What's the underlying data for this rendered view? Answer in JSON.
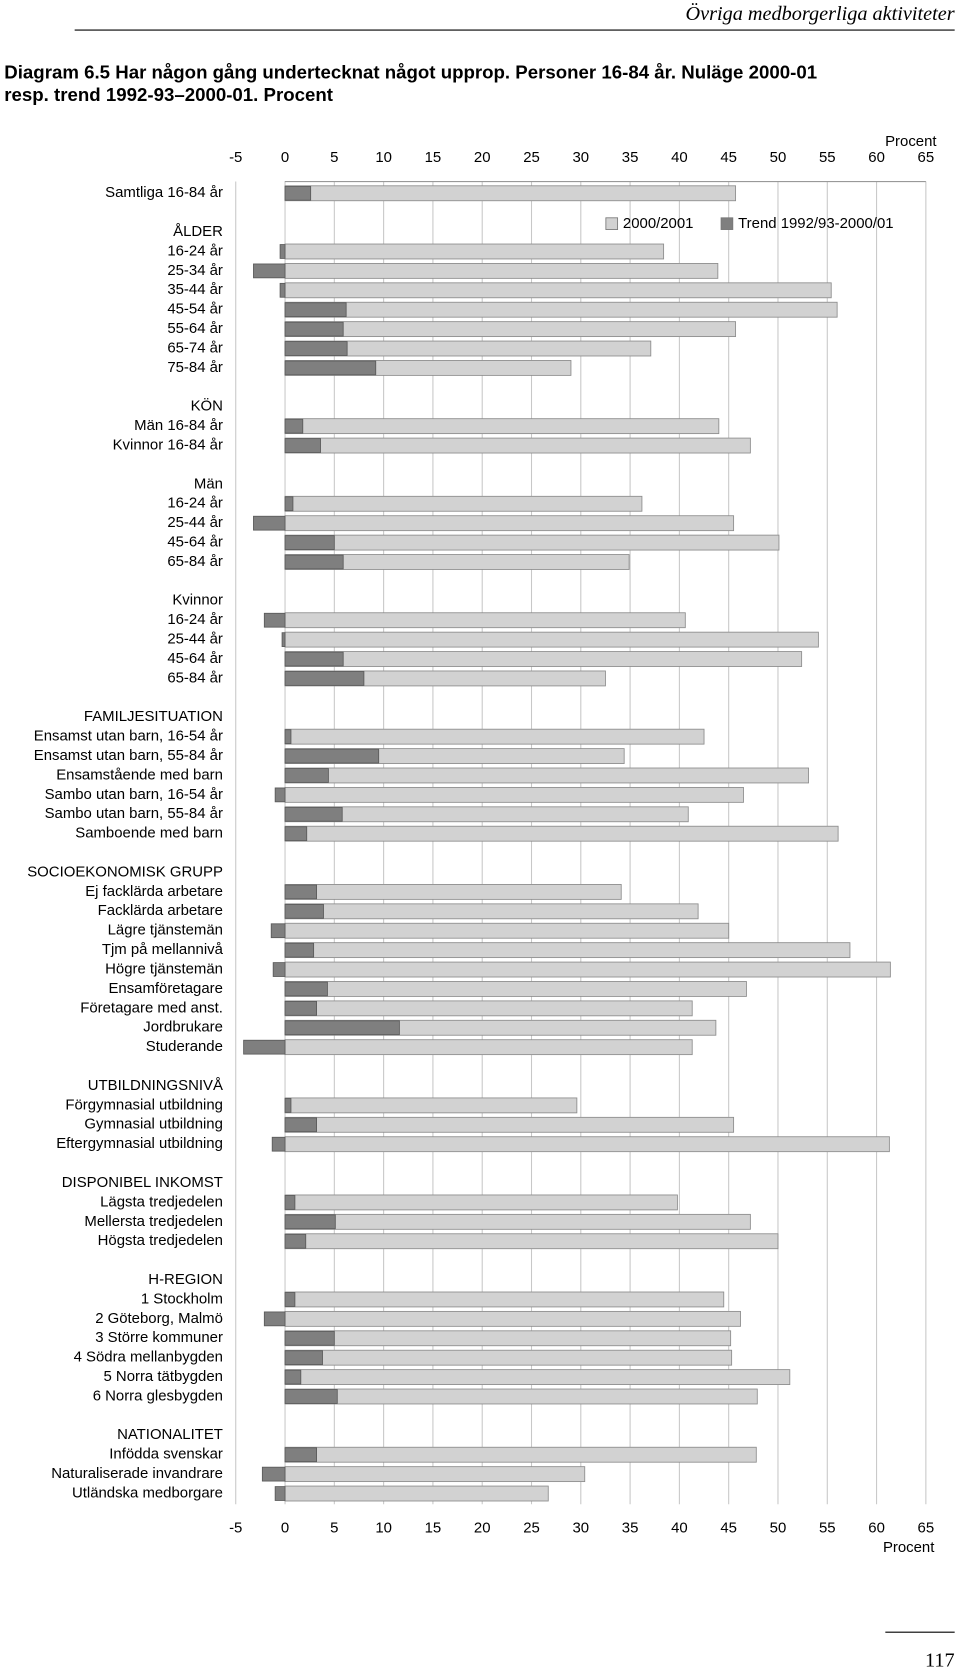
{
  "header": {
    "running_title": "Övriga medborgerliga aktiviteter"
  },
  "chart_data": {
    "type": "bar",
    "orientation": "horizontal",
    "title": [
      "Diagram 6.5 Har någon gång undertecknat något upprop. Personer 16-84 år. Nuläge 2000-01",
      "resp. trend 1992-93–2000-01. Procent"
    ],
    "x_label": "Procent",
    "xlim": [
      -5,
      65
    ],
    "xticks": [
      -5,
      0,
      5,
      10,
      15,
      20,
      25,
      30,
      35,
      40,
      45,
      50,
      55,
      60,
      65
    ],
    "grid": true,
    "legend": "top-right",
    "categories": [
      "Samtliga 16-84 år",
      null,
      "ÅLDER",
      "16-24 år",
      "25-34 år",
      "35-44 år",
      "45-54 år",
      "55-64 år",
      "65-74 år",
      "75-84 år",
      null,
      "KÖN",
      "Män 16-84 år",
      "Kvinnor 16-84 år",
      null,
      "Män",
      "16-24 år",
      "25-44 år",
      "45-64 år",
      "65-84 år",
      null,
      "Kvinnor",
      "16-24 år",
      "25-44 år",
      "45-64 år",
      "65-84 år",
      null,
      "FAMILJESITUATION",
      "Ensamst utan barn, 16-54 år",
      "Ensamst utan barn, 55-84 år",
      "Ensamstående med barn",
      "Sambo utan barn, 16-54 år",
      "Sambo utan barn, 55-84 år",
      "Samboende med barn",
      null,
      "SOCIOEKONOMISK GRUPP",
      "Ej facklärda arbetare",
      "Facklärda arbetare",
      "Lägre tjänstemän",
      "Tjm på mellannivå",
      "Högre tjänstemän",
      "Ensamföretagare",
      "Företagare med anst.",
      "Jordbrukare",
      "Studerande",
      null,
      "UTBILDNINGSNIVÅ",
      "Förgymnasial utbildning",
      "Gymnasial utbildning",
      "Eftergymnasial utbildning",
      null,
      "DISPONIBEL INKOMST",
      "Lägsta tredjedelen",
      "Mellersta tredjedelen",
      "Högsta tredjedelen",
      null,
      "H-REGION",
      "1 Stockholm",
      "2 Göteborg, Malmö",
      "3 Större kommuner",
      "4 Södra mellanbygden",
      "5 Norra tätbygden",
      "6 Norra glesbygden",
      null,
      "NATIONALITET",
      "Infödda svenskar",
      "Naturaliserade invandrare",
      "Utländska medborgare"
    ],
    "series": [
      {
        "name": "2000/2001",
        "color": "#d2d2d2",
        "values": [
          45.7,
          null,
          null,
          38.4,
          43.9,
          55.4,
          56.0,
          45.7,
          37.1,
          29.0,
          null,
          null,
          44.0,
          47.2,
          null,
          null,
          36.2,
          45.5,
          50.1,
          34.9,
          null,
          null,
          40.6,
          54.1,
          52.4,
          32.5,
          null,
          null,
          42.5,
          34.4,
          53.1,
          46.5,
          40.9,
          56.1,
          null,
          null,
          34.1,
          41.9,
          45.0,
          57.3,
          61.4,
          46.8,
          41.3,
          43.7,
          41.3,
          null,
          null,
          29.6,
          45.5,
          61.3,
          null,
          null,
          39.8,
          47.2,
          50.0,
          null,
          null,
          44.5,
          46.2,
          45.2,
          45.3,
          51.2,
          47.9,
          null,
          null,
          47.8,
          30.4,
          26.7
        ]
      },
      {
        "name": "Trend 1992/93-2000/01",
        "color": "#7f7f7f",
        "values": [
          2.6,
          null,
          null,
          -0.5,
          -3.2,
          -0.5,
          6.2,
          5.9,
          6.3,
          9.2,
          null,
          null,
          1.8,
          3.6,
          null,
          null,
          0.8,
          -3.2,
          5.0,
          5.9,
          null,
          null,
          -2.1,
          -0.3,
          5.9,
          8.0,
          null,
          null,
          0.6,
          9.5,
          4.4,
          -1.0,
          5.8,
          2.2,
          null,
          null,
          3.2,
          3.9,
          -1.4,
          2.9,
          -1.2,
          4.3,
          3.2,
          11.6,
          -4.2,
          null,
          null,
          0.6,
          3.2,
          -1.3,
          null,
          null,
          1.0,
          5.1,
          2.1,
          null,
          null,
          1.0,
          -2.1,
          5.0,
          3.8,
          1.6,
          5.3,
          null,
          null,
          3.2,
          -2.3,
          -1.0
        ]
      }
    ]
  },
  "footer": {
    "page_number": "117"
  }
}
